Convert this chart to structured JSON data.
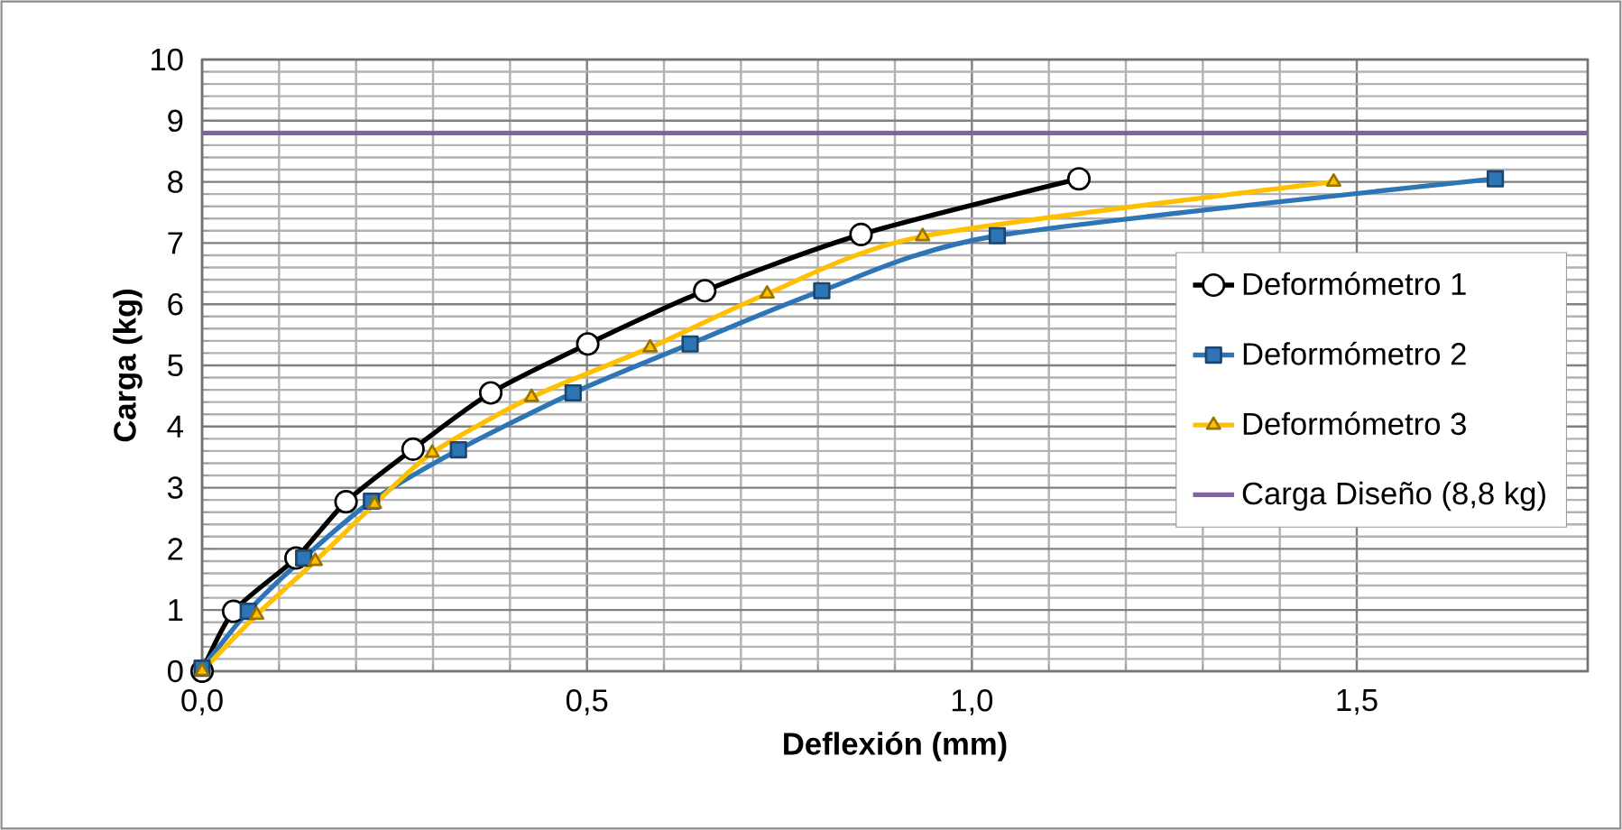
{
  "chart_data": {
    "type": "line",
    "xlabel": "Deflexión (mm)",
    "ylabel": "Carga (kg)",
    "xlim": [
      0,
      1.8
    ],
    "ylim": [
      0,
      10
    ],
    "xticks": [
      {
        "value": 0,
        "label": "0,0"
      },
      {
        "value": 0.5,
        "label": "0,5"
      },
      {
        "value": 1,
        "label": "1,0"
      },
      {
        "value": 1.5,
        "label": "1,5"
      }
    ],
    "yticks": [
      0,
      1,
      2,
      3,
      4,
      5,
      6,
      7,
      8,
      9,
      10
    ],
    "grid": true,
    "legend": "right",
    "line_style": "solid",
    "series": [
      {
        "name": "Deformómetro 1",
        "color": "#000000",
        "marker": "circle",
        "x": [
          0,
          0.041,
          0.122,
          0.187,
          0.274,
          0.375,
          0.501,
          0.653,
          0.856,
          1.139
        ],
        "values": [
          0,
          0.98,
          1.85,
          2.77,
          3.63,
          4.55,
          5.35,
          6.22,
          7.14,
          8.05
        ]
      },
      {
        "name": "Deformómetro 2",
        "color": "#2e75b6",
        "marker": "square",
        "x": [
          0,
          0.06,
          0.132,
          0.22,
          0.333,
          0.482,
          0.634,
          0.805,
          1.033,
          1.68
        ],
        "values": [
          0.05,
          0.98,
          1.85,
          2.78,
          3.62,
          4.55,
          5.35,
          6.22,
          7.12,
          8.05
        ]
      },
      {
        "name": "Deformómetro 3",
        "color": "#ffc000",
        "marker": "triangle",
        "x": [
          0,
          0.071,
          0.147,
          0.224,
          0.299,
          0.428,
          0.582,
          0.734,
          0.936,
          1.47
        ],
        "values": [
          0,
          0.92,
          1.8,
          2.73,
          3.57,
          4.48,
          5.29,
          6.17,
          7.11,
          8.0
        ]
      },
      {
        "name": "Carga Diseño (8,8 kg)",
        "color": "#8064a2",
        "marker": "none",
        "x": [
          0,
          1.8
        ],
        "values": [
          8.8,
          8.8
        ]
      }
    ]
  }
}
